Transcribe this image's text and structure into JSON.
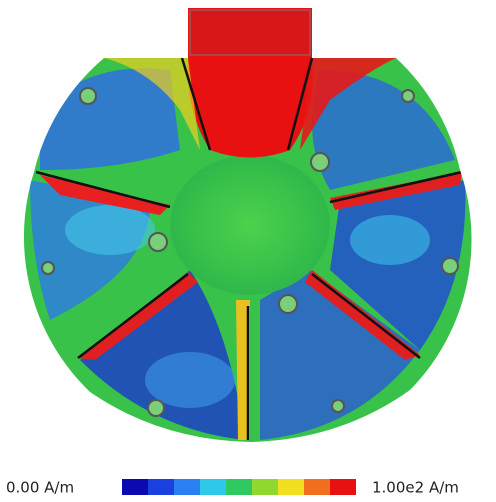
{
  "colorbar": {
    "min_label": "0.00 A/m",
    "max_label": "1.00e2 A/m"
  }
}
